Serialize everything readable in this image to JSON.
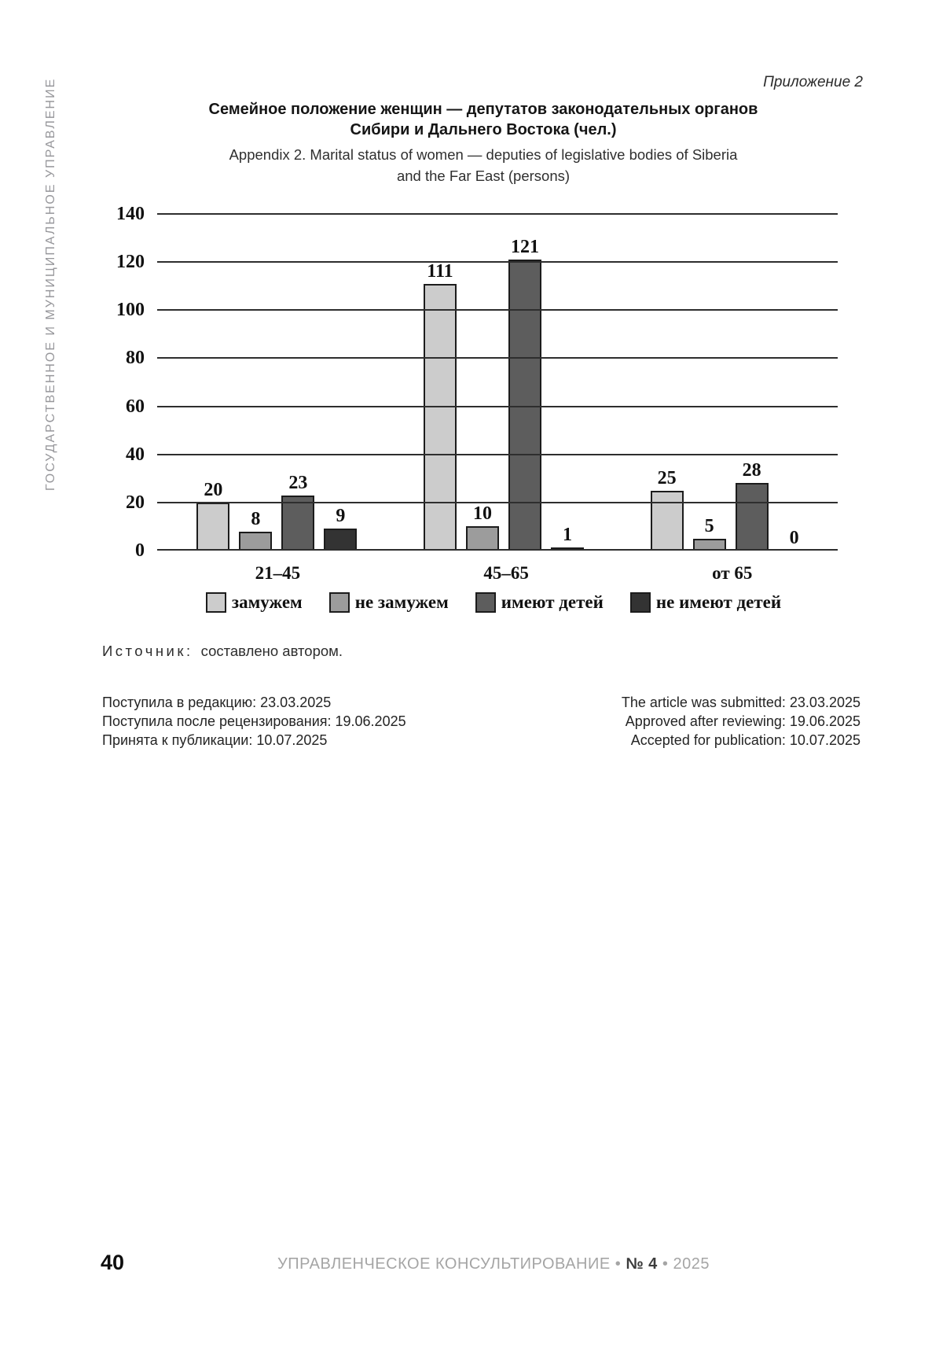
{
  "page": {
    "sidebar_text": "ГОСУДАРСТВЕННОЕ И МУНИЦИПАЛЬНОЕ УПРАВЛЕНИЕ",
    "appendix_label": "Приложение 2"
  },
  "title": {
    "ru_line1": "Семейное положение женщин — депутатов законодательных органов",
    "ru_line2": "Сибири и Дальнего Востока (чел.)",
    "en_line1": "Appendix 2. Marital status of women — deputies of legislative bodies of Siberia",
    "en_line2": "and the Far East (persons)"
  },
  "chart_data": {
    "type": "bar",
    "title": "Семейное положение женщин — депутатов законодательных органов Сибири и Дальнего Востока (чел.)",
    "categories": [
      "21–45",
      "45–65",
      "от 65"
    ],
    "series": [
      {
        "name": "замужем",
        "color": "#cccccc",
        "values": [
          20,
          111,
          25
        ]
      },
      {
        "name": "не замужем",
        "color": "#9c9c9c",
        "values": [
          8,
          10,
          5
        ]
      },
      {
        "name": "имеют детей",
        "color": "#5d5d5d",
        "values": [
          23,
          121,
          28
        ]
      },
      {
        "name": "не имеют детей",
        "color": "#333333",
        "values": [
          9,
          1,
          0
        ]
      }
    ],
    "xlabel": "",
    "ylabel": "",
    "ylim": [
      0,
      140
    ],
    "yticks": [
      0,
      20,
      40,
      60,
      80,
      100,
      120,
      140
    ],
    "grid": true,
    "legend_position": "bottom",
    "bar_border_color": "#1c1c1c",
    "gridline_color": "#2e2e2e"
  },
  "source": {
    "label": "Источник:",
    "text": "составлено автором."
  },
  "dates": {
    "ru": [
      "Поступила в редакцию: 23.03.2025",
      "Поступила после рецензирования: 19.06.2025",
      "Принята к публикации: 10.07.2025"
    ],
    "en": [
      "The article was submitted: 23.03.2025",
      "Approved after reviewing: 19.06.2025",
      "Accepted for publication: 10.07.2025"
    ]
  },
  "footer": {
    "page_number": "40",
    "journal_name": "УПРАВЛЕНЧЕСКОЕ КОНСУЛЬТИРОВАНИЕ",
    "bullet": "•",
    "issue": "№ 4",
    "year": "2025"
  }
}
